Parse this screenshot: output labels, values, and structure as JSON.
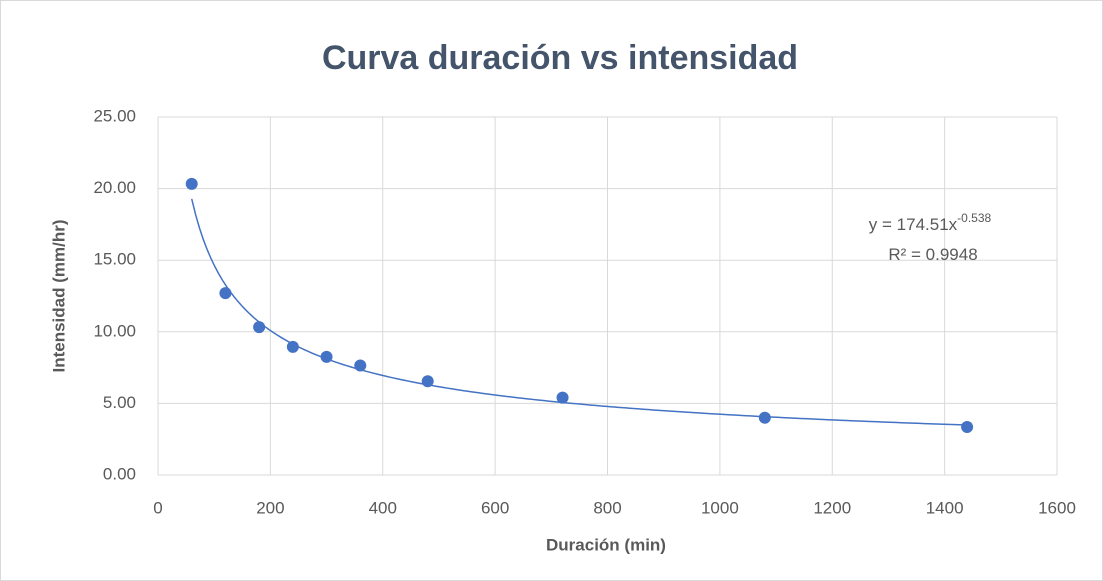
{
  "chart_data": {
    "type": "scatter",
    "title": "Curva duración vs intensidad",
    "x_label": "Duración (min)",
    "y_label": "Intensidad (mm/hr)",
    "series": [
      {
        "name": "Intensidad",
        "color": "#4472c4",
        "x": [
          60,
          120,
          180,
          240,
          300,
          360,
          480,
          720,
          1080,
          1440
        ],
        "values": [
          20.33,
          12.7,
          10.33,
          8.95,
          8.25,
          7.65,
          6.55,
          5.4,
          4.0,
          3.35
        ]
      }
    ],
    "trendline": {
      "type": "power",
      "color": "#4472c4",
      "equation_prefix": "y = ",
      "coefficient": 174.51,
      "variable": "x",
      "exponent": -0.538,
      "r2_prefix": "R² = ",
      "r2": 0.9948
    },
    "xlim": [
      0,
      1600
    ],
    "xticks": [
      0,
      200,
      400,
      600,
      800,
      1000,
      1200,
      1400,
      1600
    ],
    "ylim": [
      0,
      25
    ],
    "yticks": [
      {
        "value": 0,
        "label": "0.00"
      },
      {
        "value": 5,
        "label": "5.00"
      },
      {
        "value": 10,
        "label": "10.00"
      },
      {
        "value": 15,
        "label": "15.00"
      },
      {
        "value": 20,
        "label": "20.00"
      },
      {
        "value": 25,
        "label": "25.00"
      }
    ],
    "grid": true
  }
}
